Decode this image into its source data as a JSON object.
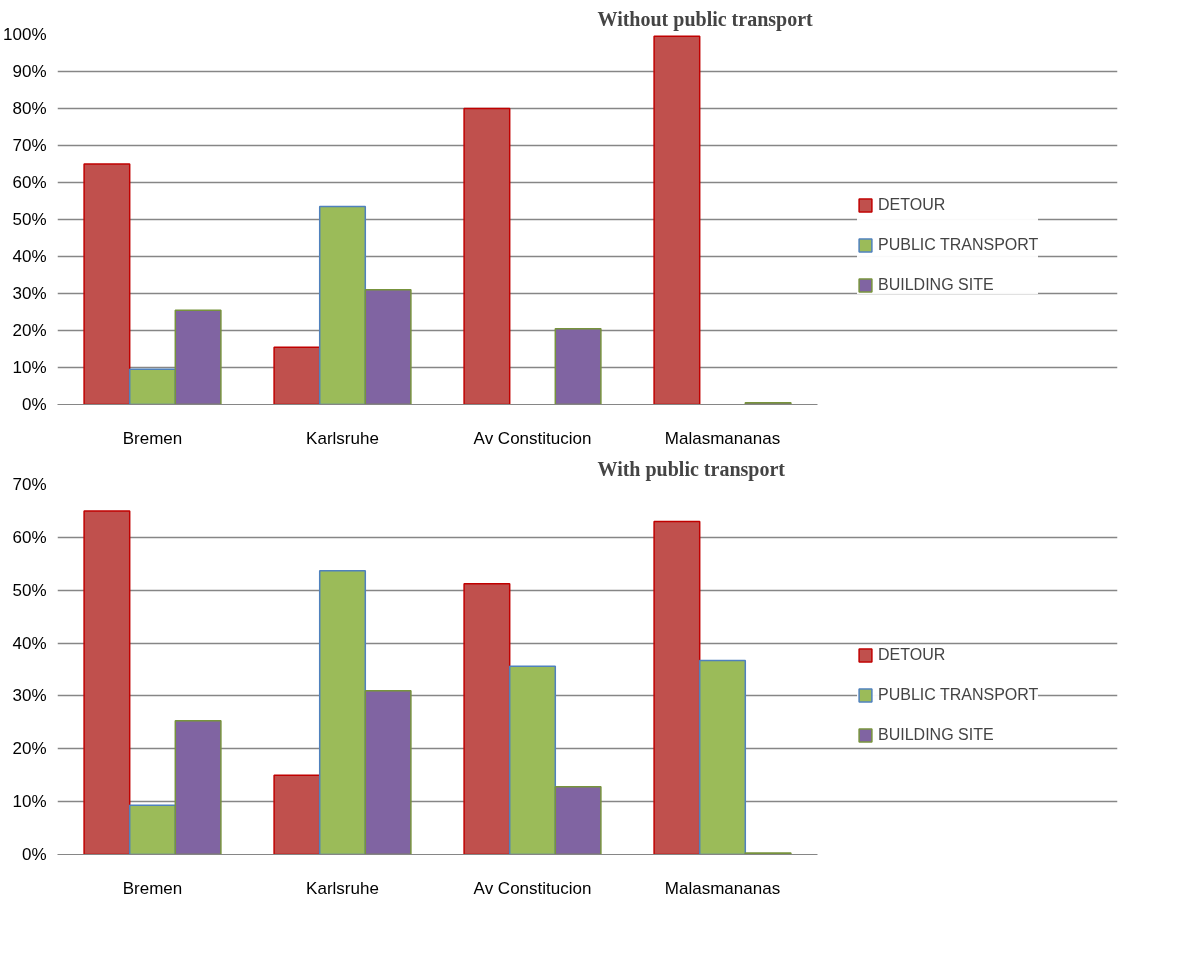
{
  "chart_data": [
    {
      "type": "bar",
      "title": "Without public transport",
      "categories": [
        "Bremen",
        "Karlsruhe",
        "Av Constitucion",
        "Malasmananas"
      ],
      "series": [
        {
          "name": "DETOUR",
          "color": "#c0504d",
          "values": [
            65,
            15.5,
            80,
            99.5
          ]
        },
        {
          "name": "PUBLIC TRANSPORT",
          "color": "#9bbb59",
          "values": [
            9.5,
            53.5,
            null,
            null
          ]
        },
        {
          "name": "BUILDING SITE",
          "color": "#8064a2",
          "values": [
            25.5,
            31,
            20.5,
            0.5
          ]
        }
      ],
      "ylim": [
        0,
        100
      ],
      "yticks": [
        {
          "value": 0,
          "label": "0%"
        },
        {
          "value": 10,
          "label": "10%"
        },
        {
          "value": 20,
          "label": "20%"
        },
        {
          "value": 30,
          "label": "30%"
        },
        {
          "value": 40,
          "label": "40%"
        },
        {
          "value": 50,
          "label": "50%"
        },
        {
          "value": 60,
          "label": "60%"
        },
        {
          "value": 70,
          "label": "70%"
        },
        {
          "value": 80,
          "label": "80%"
        },
        {
          "value": 90,
          "label": "90%"
        },
        {
          "value": 100,
          "label": "100%"
        }
      ],
      "grid": "y",
      "legend": "right"
    },
    {
      "type": "bar",
      "title": "With public transport",
      "categories": [
        "Bremen",
        "Karlsruhe",
        "Av Constitucion",
        "Malasmananas"
      ],
      "series": [
        {
          "name": "DETOUR",
          "color": "#c0504d",
          "values": [
            65,
            15,
            51.2,
            63
          ]
        },
        {
          "name": "PUBLIC TRANSPORT",
          "color": "#9bbb59",
          "values": [
            9.3,
            53.7,
            35.6,
            36.7
          ]
        },
        {
          "name": "BUILDING SITE",
          "color": "#8064a2",
          "values": [
            25.3,
            31,
            12.8,
            0.3
          ]
        }
      ],
      "ylim": [
        0,
        70
      ],
      "yticks": [
        {
          "value": 0,
          "label": "0%"
        },
        {
          "value": 10,
          "label": "10%"
        },
        {
          "value": 20,
          "label": "20%"
        },
        {
          "value": 30,
          "label": "30%"
        },
        {
          "value": 40,
          "label": "40%"
        },
        {
          "value": 50,
          "label": "50%"
        },
        {
          "value": 60,
          "label": "60%"
        },
        {
          "value": 70,
          "label": "70%"
        }
      ],
      "grid": "y",
      "legend": "right"
    }
  ]
}
